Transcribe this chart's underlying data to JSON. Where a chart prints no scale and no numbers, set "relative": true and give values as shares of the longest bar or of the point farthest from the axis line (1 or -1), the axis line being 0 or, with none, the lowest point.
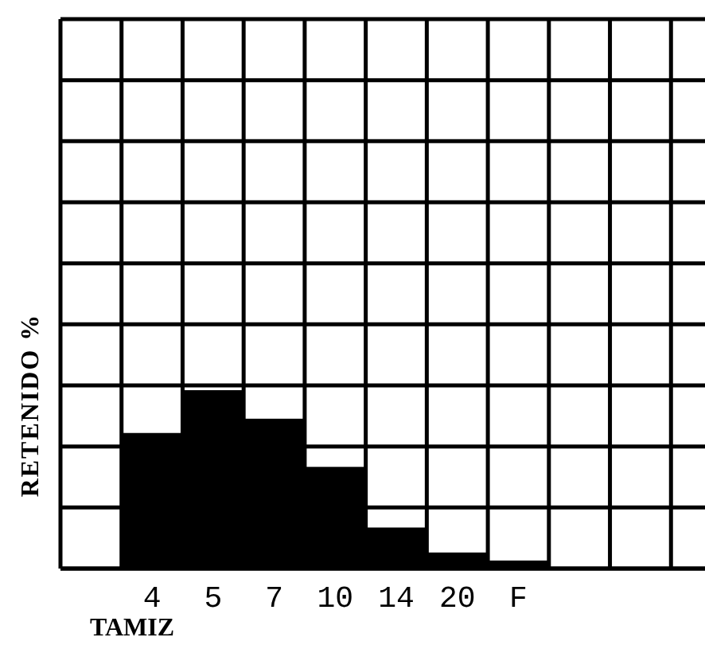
{
  "chart_data": {
    "type": "bar",
    "relative": true,
    "xlabel": "TAMIZ",
    "ylabel": "RETENIDO %",
    "categories": [
      "4",
      "5",
      "7",
      "10",
      "14",
      "20",
      "F"
    ],
    "values": [
      0.76,
      1,
      0.84,
      0.57,
      0.23,
      0.09,
      0.045
    ],
    "color": "#000000",
    "grid": true
  }
}
